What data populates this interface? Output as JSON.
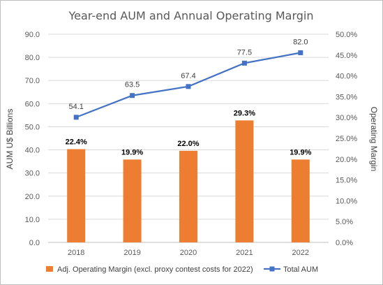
{
  "chart_data": {
    "type": "bar",
    "title": "Year-end AUM and Annual Operating Margin",
    "categories": [
      "2018",
      "2019",
      "2020",
      "2021",
      "2022"
    ],
    "y_left": {
      "label": "AUM U$ Billions",
      "range": [
        0,
        90
      ],
      "ticks": [
        "0.0",
        "10.0",
        "20.0",
        "30.0",
        "40.0",
        "50.0",
        "60.0",
        "70.0",
        "80.0",
        "90.0"
      ]
    },
    "y_right": {
      "label": "Operating Margin",
      "range": [
        0,
        50
      ],
      "ticks": [
        "0.0%",
        "5.0%",
        "10.0%",
        "15.0%",
        "20.0%",
        "25.0%",
        "30.0%",
        "35.0%",
        "40.0%",
        "45.0%",
        "50.0%"
      ]
    },
    "grid": true,
    "legend_position": "bottom",
    "series": [
      {
        "name": "Adj. Operating Margin (excl. proxy contest costs for 2022)",
        "type": "bar",
        "axis": "right",
        "values": [
          22.4,
          19.9,
          22.0,
          29.3,
          19.9
        ],
        "labels": [
          "22.4%",
          "19.9%",
          "22.0%",
          "29.3%",
          "19.9%"
        ],
        "color": "#ed7d31"
      },
      {
        "name": "Total AUM",
        "type": "line",
        "axis": "left",
        "values": [
          54.1,
          63.5,
          67.4,
          77.5,
          82.0
        ],
        "labels": [
          "54.1",
          "63.5",
          "67.4",
          "77.5",
          "82.0"
        ],
        "color": "#4472c4"
      }
    ]
  }
}
